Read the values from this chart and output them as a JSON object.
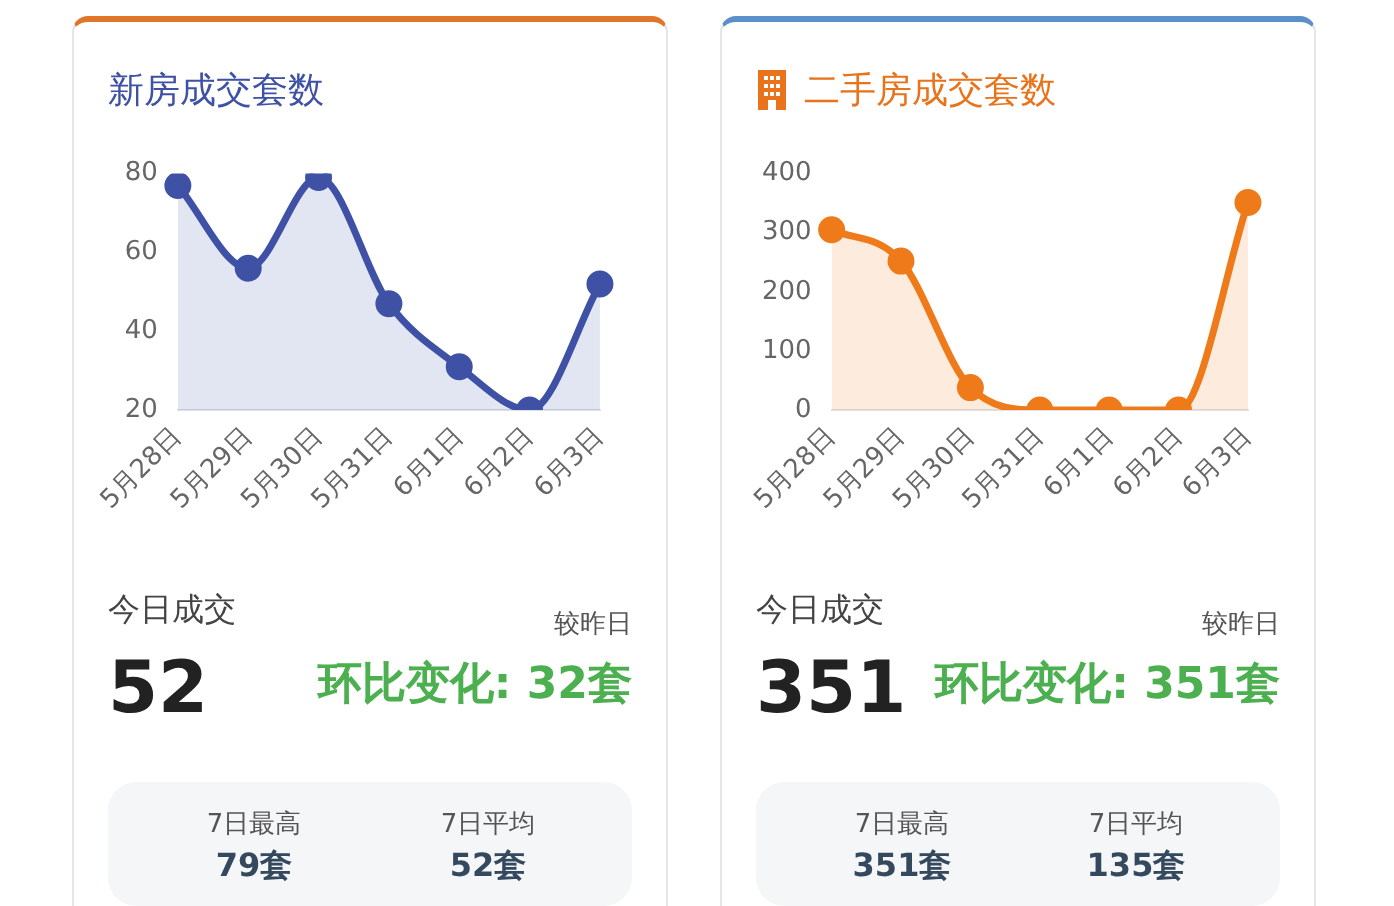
{
  "chart_data": [
    {
      "type": "area",
      "title": "新房成交套数",
      "categories": [
        "5月28日",
        "5月29日",
        "5月30日",
        "5月31日",
        "6月1日",
        "6月2日",
        "6月3日"
      ],
      "series": [
        {
          "color": "#3f51a5",
          "values": [
            77,
            56,
            79,
            47,
            31,
            20,
            52
          ]
        }
      ],
      "ylim": [
        20,
        80
      ],
      "yticks": [
        20,
        40,
        60,
        80
      ],
      "grid": false,
      "legend": false,
      "marker": "circle",
      "annotations": [
        "今日成交",
        "52",
        "较昨日",
        "环比变化: 32套",
        "7日最高",
        "79套",
        "7日平均",
        "52套"
      ]
    },
    {
      "type": "area",
      "title": "二手房成交套数",
      "categories": [
        "5月28日",
        "5月29日",
        "5月30日",
        "5月31日",
        "6月1日",
        "6月2日",
        "6月3日"
      ],
      "series": [
        {
          "color": "#ef7a1a",
          "values": [
            305,
            252,
            38,
            0,
            0,
            0,
            351
          ]
        }
      ],
      "ylim": [
        0,
        400
      ],
      "yticks": [
        0,
        100,
        200,
        300,
        400
      ],
      "grid": false,
      "legend": false,
      "marker": "circle",
      "annotations": [
        "今日成交",
        "351",
        "较昨日",
        "环比变化: 351套",
        "7日最高",
        "351套",
        "7日平均",
        "135套"
      ]
    }
  ]
}
